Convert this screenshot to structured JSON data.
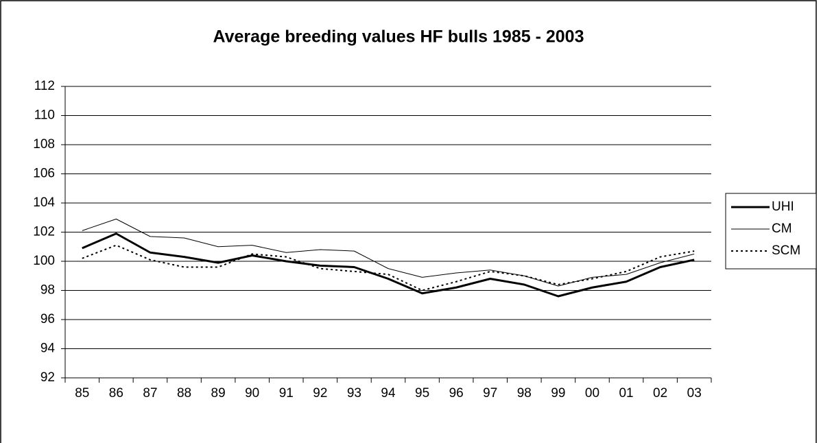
{
  "chart_data": {
    "type": "line",
    "title": "Average breeding values HF bulls 1985 - 2003",
    "categories": [
      "85",
      "86",
      "87",
      "88",
      "89",
      "90",
      "91",
      "92",
      "93",
      "94",
      "95",
      "96",
      "97",
      "98",
      "99",
      "00",
      "01",
      "02",
      "03"
    ],
    "series": [
      {
        "name": "UHI",
        "color": "#000000",
        "line_width": 3,
        "dash": "none",
        "values": [
          100.9,
          101.9,
          100.6,
          100.3,
          99.9,
          100.4,
          100.0,
          99.7,
          99.6,
          98.8,
          97.8,
          98.2,
          98.8,
          98.4,
          97.6,
          98.2,
          98.6,
          99.6,
          100.1
        ]
      },
      {
        "name": "CM",
        "color": "#000000",
        "line_width": 1,
        "dash": "none",
        "values": [
          102.1,
          102.9,
          101.7,
          101.6,
          101.0,
          101.1,
          100.6,
          100.8,
          100.7,
          99.5,
          98.9,
          99.2,
          99.4,
          99.0,
          98.3,
          98.9,
          99.1,
          99.9,
          100.5
        ]
      },
      {
        "name": "SCM",
        "color": "#000000",
        "line_width": 2,
        "dash": "3 4",
        "values": [
          100.2,
          101.1,
          100.1,
          99.6,
          99.6,
          100.5,
          100.3,
          99.5,
          99.3,
          99.1,
          98.0,
          98.6,
          99.3,
          99.0,
          98.4,
          98.8,
          99.3,
          100.3,
          100.7
        ]
      }
    ],
    "ylim": [
      92,
      112
    ],
    "yticks": [
      92,
      94,
      96,
      98,
      100,
      102,
      104,
      106,
      108,
      110,
      112
    ],
    "grid": true,
    "legend": "right"
  }
}
